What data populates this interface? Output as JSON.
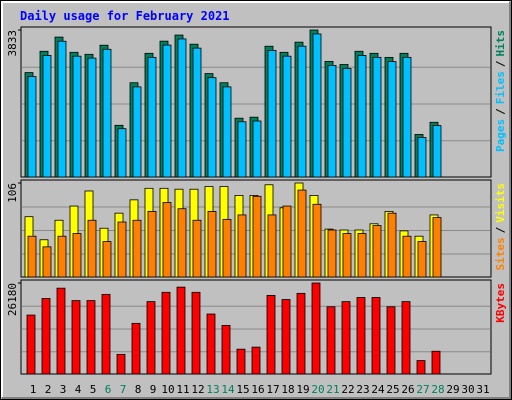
{
  "chart_data": {
    "type": "bar",
    "title": "Daily usage for February 2021",
    "categories": [
      "1",
      "2",
      "3",
      "4",
      "5",
      "6",
      "7",
      "8",
      "9",
      "10",
      "11",
      "12",
      "13",
      "14",
      "15",
      "16",
      "17",
      "18",
      "19",
      "20",
      "21",
      "22",
      "23",
      "24",
      "25",
      "26",
      "27",
      "28",
      "29",
      "30",
      "31"
    ],
    "category_colors": [
      "#000000",
      "#000000",
      "#000000",
      "#000000",
      "#000000",
      "#00805c",
      "#00805c",
      "#000000",
      "#000000",
      "#000000",
      "#000000",
      "#000000",
      "#00805c",
      "#00805c",
      "#000000",
      "#000000",
      "#000000",
      "#000000",
      "#000000",
      "#00805c",
      "#00805c",
      "#000000",
      "#000000",
      "#000000",
      "#000000",
      "#000000",
      "#00805c",
      "#00805c",
      "#000000",
      "#000000",
      "#000000"
    ],
    "separator": "/",
    "panels": [
      {
        "ylim": [
          0,
          3833
        ],
        "yticks": [
          3833
        ],
        "extra_legend": {
          "name": "Pages",
          "color": "#00c0ff"
        },
        "series": [
          {
            "name": "Hits",
            "color": "#00805c",
            "values": [
              2723,
              3278,
              3648,
              3251,
              3199,
              3436,
              1348,
              2458,
              3225,
              3542,
              3701,
              3463,
              2696,
              2458,
              1533,
              1560,
              3410,
              3251,
              3516,
              3833,
              3014,
              2934,
              3278,
              3225,
              3119,
              3225,
              1110,
              1427,
              null,
              null,
              null
            ]
          },
          {
            "name": "Files",
            "color": "#00c0ff",
            "values": [
              2620,
              3170,
              3540,
              3150,
              3100,
              3330,
              1260,
              2350,
              3120,
              3440,
              3600,
              3360,
              2590,
              2350,
              1440,
              1460,
              3300,
              3150,
              3410,
              3730,
              2910,
              2830,
              3170,
              3120,
              3010,
              3120,
              1030,
              1340,
              null,
              null,
              null
            ]
          }
        ]
      },
      {
        "ylim": [
          0,
          106
        ],
        "yticks": [
          106
        ],
        "series": [
          {
            "name": "Visits",
            "color": "#ffff00",
            "values": [
              68,
              42,
              64,
              80,
              97,
              55,
              72,
              87,
              100,
              100,
              99,
              99,
              102,
              102,
              92,
              92,
              104,
              78,
              106,
              92,
              54,
              53,
              53,
              60,
              74,
              52,
              46,
              70,
              null,
              null,
              null
            ]
          },
          {
            "name": "Sites",
            "color": "#ff8000",
            "values": [
              46,
              34,
              46,
              49,
              64,
              40,
              62,
              64,
              74,
              84,
              77,
              64,
              74,
              65,
              70,
              91,
              70,
              80,
              98,
              82,
              53,
              49,
              49,
              58,
              72,
              46,
              40,
              67,
              null,
              null,
              null
            ]
          }
        ]
      },
      {
        "ylim": [
          0,
          26180
        ],
        "yticks": [
          26180
        ],
        "series": [
          {
            "name": "KBytes",
            "color": "#ff0000",
            "values": [
              16958,
              21718,
              24693,
              21123,
              21123,
              22908,
              5653,
              14578,
              20825,
              23503,
              24990,
              23503,
              17255,
              13983,
              7140,
              7735,
              22610,
              21420,
              23205,
              26180,
              19338,
              20825,
              22015,
              22015,
              19338,
              20825,
              3868,
              6545,
              null,
              null,
              null
            ]
          }
        ]
      }
    ]
  }
}
